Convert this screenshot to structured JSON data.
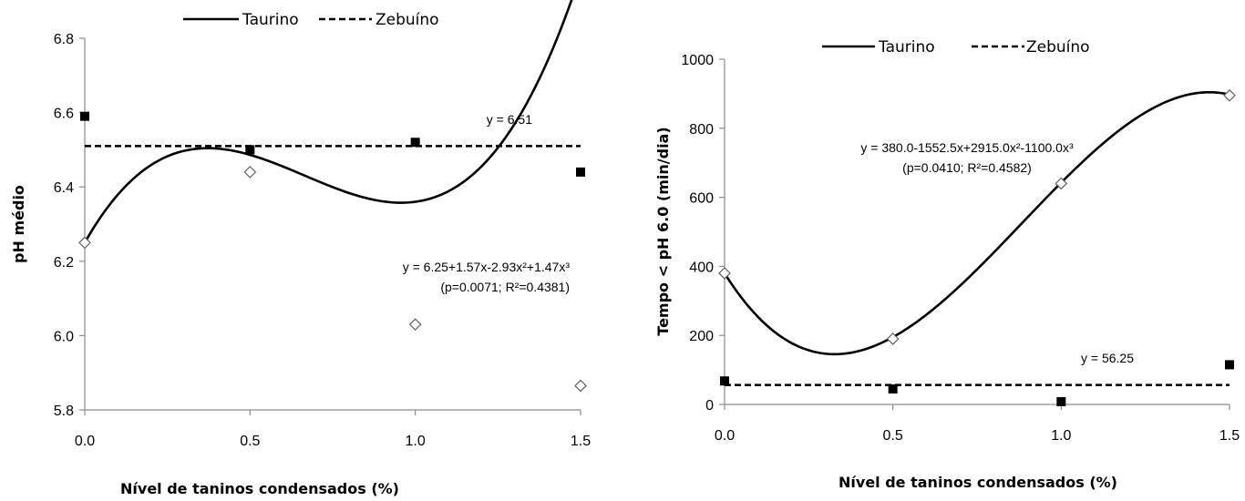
{
  "chart_data": [
    {
      "type": "line",
      "title": "",
      "xlabel": "Nível de taninos condensados (%)",
      "ylabel": "pH médio",
      "x_ticks": [
        "0.0",
        "0.5",
        "1.0",
        "1.5"
      ],
      "y_ticks": [
        "5.8",
        "6.0",
        "6.2",
        "6.4",
        "6.6",
        "6.8"
      ],
      "xlim": [
        0,
        1.5
      ],
      "ylim": [
        5.8,
        6.8
      ],
      "grid": false,
      "legend_position": "top",
      "series": [
        {
          "name": "Taurino",
          "line_style": "solid",
          "marker": "open-diamond",
          "x": [
            0,
            0.5,
            1.0,
            1.5
          ],
          "y": [
            6.25,
            6.44,
            6.03,
            5.865
          ],
          "fit": {
            "kind": "cubic",
            "coef": [
              6.25,
              1.57,
              -2.93,
              1.47
            ]
          }
        },
        {
          "name": "Zebuíno",
          "line_style": "dashed",
          "marker": "filled-square",
          "x": [
            0,
            0.5,
            1.0,
            1.5
          ],
          "y": [
            6.59,
            6.5,
            6.52,
            6.44
          ],
          "fit": {
            "kind": "constant",
            "value": 6.51
          }
        }
      ],
      "annotations": [
        {
          "id": "eq-zebu",
          "lines": [
            "y = 6.51"
          ]
        },
        {
          "id": "eq-taurino",
          "lines": [
            "y = 6.25+1.57x-2.93x²+1.47x³",
            "(p=0.0071; R²=0.4381)"
          ]
        }
      ]
    },
    {
      "type": "line",
      "title": "",
      "xlabel": "Nível de taninos condensados (%)",
      "ylabel": "Tempo < pH 6.0 (min/dia)",
      "x_ticks": [
        "0.0",
        "0.5",
        "1.0",
        "1.5"
      ],
      "y_ticks": [
        "0",
        "200",
        "400",
        "600",
        "800",
        "1000"
      ],
      "xlim": [
        0,
        1.5
      ],
      "ylim": [
        0,
        1000
      ],
      "grid": false,
      "legend_position": "top",
      "series": [
        {
          "name": "Taurino",
          "line_style": "solid",
          "marker": "open-diamond",
          "x": [
            0,
            0.5,
            1.0,
            1.5
          ],
          "y": [
            380,
            190,
            640,
            895
          ],
          "fit": {
            "kind": "cubic",
            "coef": [
              380.0,
              -1552.5,
              2915.0,
              -1100.0
            ]
          }
        },
        {
          "name": "Zebuíno",
          "line_style": "dashed",
          "marker": "filled-square",
          "x": [
            0,
            0.5,
            1.0,
            1.5
          ],
          "y": [
            68,
            45,
            8,
            115
          ],
          "fit": {
            "kind": "constant",
            "value": 56.25
          }
        }
      ],
      "annotations": [
        {
          "id": "eq-taurino",
          "lines": [
            "y = 380.0-1552.5x+2915.0x²-1100.0x³",
            "(p=0.0410; R²=0.4582)"
          ]
        },
        {
          "id": "eq-zebu",
          "lines": [
            "y  = 56.25"
          ]
        }
      ]
    }
  ]
}
